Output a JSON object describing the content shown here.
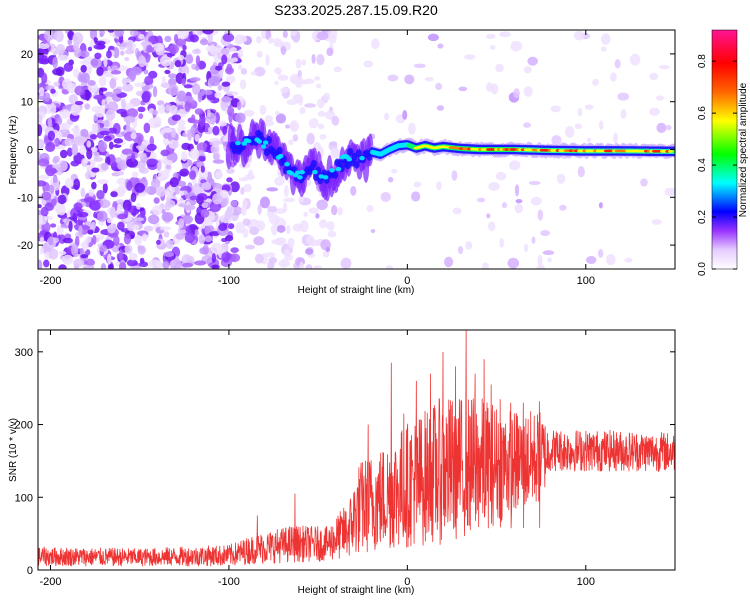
{
  "title": "S233.2025.287.15.09.R20",
  "chart_data": [
    {
      "type": "heatmap",
      "name": "spectrogram",
      "xlabel": "Height of straight line (km)",
      "ylabel": "Frequency (Hz)",
      "xlim": [
        -207,
        150
      ],
      "ylim": [
        -25,
        25
      ],
      "xticks": [
        -200,
        -100,
        0,
        100
      ],
      "yticks": [
        -20,
        -10,
        0,
        10,
        20
      ],
      "colorbar": {
        "label": "Normalized spectral amplitude",
        "range": [
          0.0,
          0.92
        ],
        "ticks": [
          0.0,
          0.2,
          0.4,
          0.6,
          0.8
        ],
        "colors": [
          "#ffffff",
          "#e6ccff",
          "#9933ff",
          "#0000ff",
          "#00ffff",
          "#00ff00",
          "#ffff00",
          "#ff6600",
          "#ff0000",
          "#ff1493"
        ]
      },
      "signal_track": [
        {
          "x": -97,
          "f": 0.5
        },
        {
          "x": -90,
          "f": 1.0
        },
        {
          "x": -85,
          "f": 2.5
        },
        {
          "x": -80,
          "f": 1.0
        },
        {
          "x": -75,
          "f": 0.0
        },
        {
          "x": -70,
          "f": -2.0
        },
        {
          "x": -65,
          "f": -4.5
        },
        {
          "x": -60,
          "f": -6.0
        },
        {
          "x": -55,
          "f": -3.5
        },
        {
          "x": -50,
          "f": -5.0
        },
        {
          "x": -45,
          "f": -7.0
        },
        {
          "x": -40,
          "f": -4.0
        },
        {
          "x": -35,
          "f": -2.0
        },
        {
          "x": -30,
          "f": -1.5
        },
        {
          "x": -25,
          "f": -2.5
        },
        {
          "x": -20,
          "f": -0.5
        },
        {
          "x": -15,
          "f": -1.0
        },
        {
          "x": -10,
          "f": 0.0
        },
        {
          "x": -5,
          "f": 0.8
        },
        {
          "x": 0,
          "f": 1.0
        },
        {
          "x": 5,
          "f": 0.3
        },
        {
          "x": 10,
          "f": 0.8
        },
        {
          "x": 15,
          "f": 0.3
        },
        {
          "x": 20,
          "f": 0.6
        },
        {
          "x": 30,
          "f": 0.2
        },
        {
          "x": 40,
          "f": 0.0
        },
        {
          "x": 60,
          "f": 0.0
        },
        {
          "x": 80,
          "f": -0.2
        },
        {
          "x": 100,
          "f": -0.3
        },
        {
          "x": 120,
          "f": -0.3
        },
        {
          "x": 150,
          "f": -0.4
        }
      ]
    },
    {
      "type": "line",
      "name": "snr",
      "xlabel": "Height of straight line (km)",
      "ylabel": "SNR (10 * v/v)",
      "xlim": [
        -207,
        150
      ],
      "ylim": [
        0,
        330
      ],
      "xticks": [
        -200,
        -100,
        0,
        100
      ],
      "yticks": [
        0,
        100,
        200,
        300
      ],
      "color": "#ee3333",
      "envelope": [
        {
          "x": -207,
          "lo": 5,
          "hi": 32
        },
        {
          "x": -150,
          "lo": 5,
          "hi": 30
        },
        {
          "x": -100,
          "lo": 5,
          "hi": 35
        },
        {
          "x": -85,
          "lo": 8,
          "hi": 50
        },
        {
          "x": -65,
          "lo": 10,
          "hi": 62
        },
        {
          "x": -45,
          "lo": 12,
          "hi": 60
        },
        {
          "x": -33,
          "lo": 15,
          "hi": 95
        },
        {
          "x": -27,
          "lo": 20,
          "hi": 150
        },
        {
          "x": -15,
          "lo": 25,
          "hi": 170
        },
        {
          "x": 0,
          "lo": 30,
          "hi": 205
        },
        {
          "x": 20,
          "lo": 35,
          "hi": 240
        },
        {
          "x": 40,
          "lo": 50,
          "hi": 240
        },
        {
          "x": 60,
          "lo": 75,
          "hi": 220
        },
        {
          "x": 75,
          "lo": 90,
          "hi": 220
        },
        {
          "x": 80,
          "lo": 135,
          "hi": 195
        },
        {
          "x": 150,
          "lo": 135,
          "hi": 190
        }
      ],
      "spikes": [
        {
          "x": -84,
          "y": 75
        },
        {
          "x": -63,
          "y": 105
        },
        {
          "x": -22,
          "y": 200
        },
        {
          "x": -9,
          "y": 285
        },
        {
          "x": -2,
          "y": 215
        },
        {
          "x": 5,
          "y": 260
        },
        {
          "x": 13,
          "y": 270
        },
        {
          "x": 20,
          "y": 300
        },
        {
          "x": 27,
          "y": 280
        },
        {
          "x": 33,
          "y": 330
        },
        {
          "x": 38,
          "y": 270
        },
        {
          "x": 43,
          "y": 290
        },
        {
          "x": 47,
          "y": 255
        },
        {
          "x": 52,
          "y": 235
        },
        {
          "x": 58,
          "y": 230
        },
        {
          "x": 65,
          "y": 230
        },
        {
          "x": 74,
          "y": 232
        }
      ]
    }
  ]
}
